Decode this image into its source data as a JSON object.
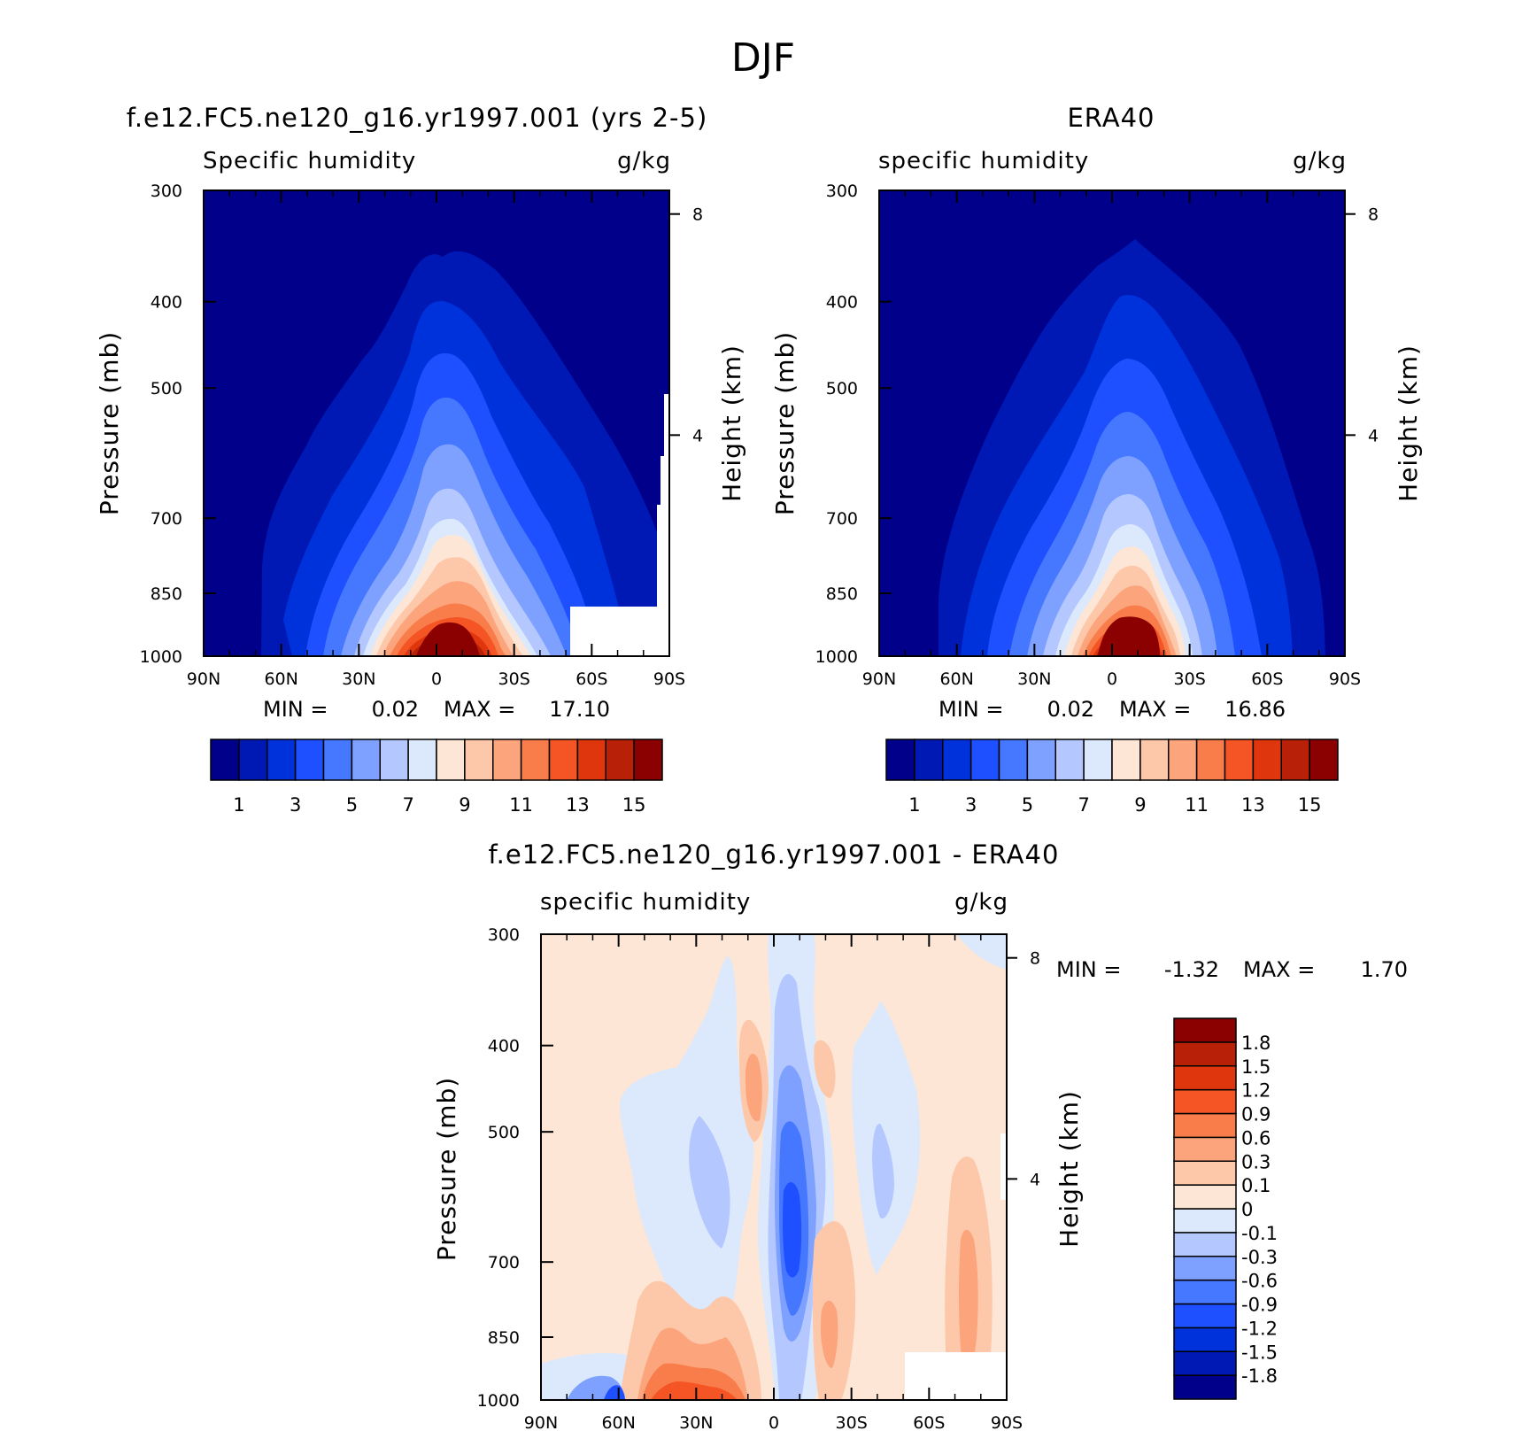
{
  "figure": {
    "main_title": "DJF"
  },
  "chart_data": [
    {
      "type": "heatmap",
      "title": "f.e12.FC5.ne120_g16.yr1997.001 (yrs 2-5)",
      "variable": "Specific humidity",
      "units": "g/kg",
      "ylabel": "Pressure (mb)",
      "y2label": "Height (km)",
      "x_ticks": [
        "90N",
        "60N",
        "30N",
        "0",
        "30S",
        "60S",
        "90S"
      ],
      "y_ticks": [
        300,
        400,
        500,
        700,
        850,
        1000
      ],
      "y2_ticks": [
        8,
        4
      ],
      "min_label": "MIN =",
      "min_value": "0.02",
      "max_label": "MAX =",
      "max_value": "17.10",
      "colorbar": {
        "orientation": "horizontal",
        "colors": [
          "#00008b",
          "#0019b4",
          "#0032dc",
          "#1e50ff",
          "#4678ff",
          "#7ea1ff",
          "#b4c8ff",
          "#dce9fc",
          "#fde6d6",
          "#fdc8aa",
          "#fca47c",
          "#f97c4b",
          "#f55424",
          "#df360e",
          "#b92008",
          "#8b0000"
        ],
        "labels": [
          "1",
          "3",
          "5",
          "7",
          "9",
          "11",
          "13",
          "15"
        ]
      },
      "field": {
        "latitude_range": [
          90,
          -90
        ],
        "pressure_range": [
          300,
          1000
        ],
        "log_pressure_axis": true,
        "peak_value": 17.1,
        "peak_latitude": -3,
        "missing_region": "below surface near 55S-90S, 900-1000 mb"
      }
    },
    {
      "type": "heatmap",
      "title": "ERA40",
      "variable": "specific humidity",
      "units": "g/kg",
      "ylabel": "Pressure (mb)",
      "y2label": "Height (km)",
      "x_ticks": [
        "90N",
        "60N",
        "30N",
        "0",
        "30S",
        "60S",
        "90S"
      ],
      "y_ticks": [
        300,
        400,
        500,
        700,
        850,
        1000
      ],
      "y2_ticks": [
        8,
        4
      ],
      "min_label": "MIN =",
      "min_value": "0.02",
      "max_label": "MAX =",
      "max_value": "16.86",
      "colorbar": {
        "orientation": "horizontal",
        "colors": [
          "#00008b",
          "#0019b4",
          "#0032dc",
          "#1e50ff",
          "#4678ff",
          "#7ea1ff",
          "#b4c8ff",
          "#dce9fc",
          "#fde6d6",
          "#fdc8aa",
          "#fca47c",
          "#f97c4b",
          "#f55424",
          "#df360e",
          "#b92008",
          "#8b0000"
        ],
        "labels": [
          "1",
          "3",
          "5",
          "7",
          "9",
          "11",
          "13",
          "15"
        ]
      },
      "field": {
        "latitude_range": [
          90,
          -90
        ],
        "pressure_range": [
          300,
          1000
        ],
        "log_pressure_axis": true,
        "peak_value": 16.86,
        "peak_latitude": -3
      }
    },
    {
      "type": "heatmap",
      "title": "f.e12.FC5.ne120_g16.yr1997.001 - ERA40",
      "variable": "specific humidity",
      "units": "g/kg",
      "ylabel": "Pressure (mb)",
      "y2label": "Height (km)",
      "x_ticks": [
        "90N",
        "60N",
        "30N",
        "0",
        "30S",
        "60S",
        "90S"
      ],
      "y_ticks": [
        300,
        400,
        500,
        700,
        850,
        1000
      ],
      "y2_ticks": [
        8,
        4
      ],
      "min_label": "MIN =",
      "min_value": "-1.32",
      "max_label": "MAX =",
      "max_value": "1.70",
      "colorbar": {
        "orientation": "vertical",
        "colors": [
          "#00008b",
          "#0019b4",
          "#0032dc",
          "#1e50ff",
          "#4678ff",
          "#7ea1ff",
          "#b4c8ff",
          "#dce9fc",
          "#fde6d6",
          "#fdc8aa",
          "#fca47c",
          "#f97c4b",
          "#f55424",
          "#df360e",
          "#b92008",
          "#8b0000"
        ],
        "labels": [
          "1.8",
          "1.5",
          "1.2",
          "0.9",
          "0.6",
          "0.3",
          "0.1",
          "0",
          "-0.1",
          "-0.3",
          "-0.6",
          "-0.9",
          "-1.2",
          "-1.5",
          "-1.8"
        ]
      },
      "field": {
        "latitude_range": [
          90,
          -90
        ],
        "pressure_range": [
          300,
          1000
        ],
        "log_pressure_axis": true,
        "missing_region": "below surface near 55S-90S, 900-1000 mb"
      }
    }
  ]
}
